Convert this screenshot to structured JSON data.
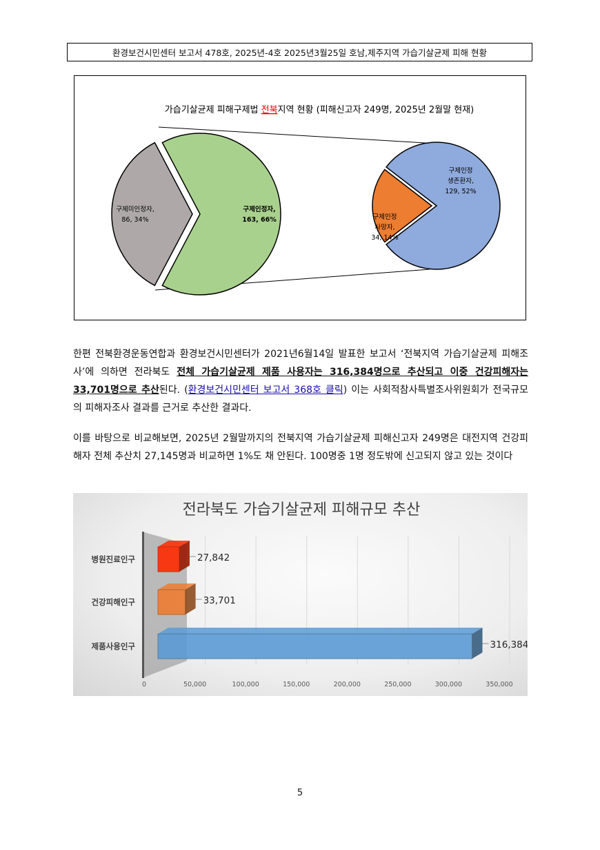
{
  "header": {
    "text": "환경보건시민센터 보고서 478호, 2025년-4호 2025년3월25일 호남,제주지역 가습기살균제 피해 현황"
  },
  "pie_chart": {
    "title_before": "가습기살균제 피해구제법 ",
    "title_highlight": "전북",
    "title_after": "지역 현황 (피해신고자 249명, 2025년 2월말 현재)",
    "main_pie": [
      {
        "label": "구제인정자,",
        "value_label": "163, 66%",
        "value": 163,
        "percent": 66,
        "color": "#a9d18e"
      },
      {
        "label": "구제미인정자,",
        "value_label": "86, 34%",
        "value": 86,
        "percent": 34,
        "color": "#aea8a8"
      }
    ],
    "sub_pie": [
      {
        "label_line1": "구제인정",
        "label_line2": "생존환자,",
        "value_label": "129, 52%",
        "value": 129,
        "percent": 52,
        "color": "#8faadc"
      },
      {
        "label_line1": "구제인정",
        "label_line2": "사망자,",
        "value_label": "34, 14%",
        "value": 34,
        "percent": 14,
        "color": "#ed7d31"
      }
    ]
  },
  "paragraph1": {
    "t1": "한편 전북환경운동연합과 환경보건시민센터가 2021년6월14일 발표한 보고서 ‘전북지역 가습기살균제 피해조사’에 의하면 전라북도 ",
    "b1": "전체 가습기살균제 제품 사용자는 316,384명으로 추산되고 이중 건강피해자는 33,701명으로 추산",
    "t2": "된다. (",
    "link": "환경보건시민센터 보고서 368호 클릭",
    "t3": ")  이는 사회적참사특별조사위원회가 전국규모의 피해자조사 결과를 근거로 추산한 결과다."
  },
  "paragraph2": {
    "text": "이를 바탕으로 비교해보면, 2025년 2월말까지의 전북지역 가습기살균제 피해신고자 249명은 대전지역 건강피해자 전체 추산치 27,145명과 비교하면 1%도 채 안된다. 100명중 1명 정도밖에 신고되지 않고 있는 것이다"
  },
  "chart_data": {
    "type": "bar",
    "orientation": "horizontal",
    "title": "전라북도 가습기살균제 피해규모 추산",
    "categories": [
      "병원진료인구",
      "건강피해인구",
      "제품사용인구"
    ],
    "values": [
      27842,
      33701,
      316384
    ],
    "value_labels": [
      "27,842",
      "33,701",
      "316,384"
    ],
    "colors": [
      "#ff2a00",
      "#ed7d31",
      "#5b9bd5"
    ],
    "xlim": [
      0,
      350000
    ],
    "x_ticks": [
      0,
      50000,
      100000,
      150000,
      200000,
      250000,
      300000,
      350000
    ],
    "x_tick_labels": [
      "0",
      "50,000",
      "100,000",
      "150,000",
      "200,000",
      "250,000",
      "300,000",
      "350,000"
    ],
    "grid": true
  },
  "page_number": "5"
}
